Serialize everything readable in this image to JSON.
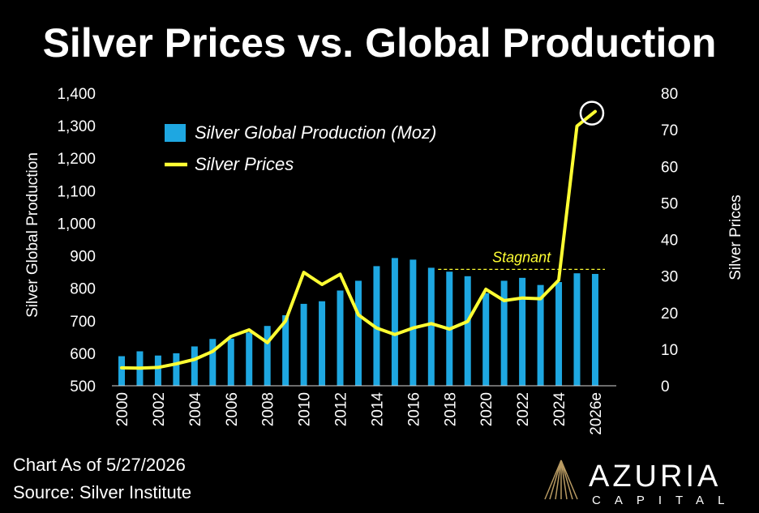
{
  "chart_data": {
    "type": "bar",
    "title": "Silver Prices vs. Global Production",
    "categories": [
      "2000",
      "2001",
      "2002",
      "2003",
      "2004",
      "2005",
      "2006",
      "2007",
      "2008",
      "2009",
      "2010",
      "2011",
      "2012",
      "2013",
      "2014",
      "2015",
      "2016",
      "2017",
      "2018",
      "2019",
      "2020",
      "2021",
      "2022",
      "2023",
      "2024",
      "2025",
      "2026e"
    ],
    "x_tick_labels": [
      "2000",
      "2002",
      "2004",
      "2006",
      "2008",
      "2010",
      "2012",
      "2014",
      "2016",
      "2018",
      "2020",
      "2022",
      "2024",
      "2026e"
    ],
    "series": [
      {
        "name": "Silver Global Production (Moz)",
        "type": "bar",
        "axis": "left",
        "color": "#1ea7e1",
        "values": [
          591,
          606,
          593,
          600,
          621,
          644,
          645,
          664,
          684,
          717,
          752,
          760,
          793,
          823,
          868,
          893,
          888,
          863,
          851,
          837,
          785,
          823,
          832,
          810,
          819,
          846,
          844
        ]
      },
      {
        "name": "Silver Prices",
        "type": "line",
        "axis": "right",
        "color": "#ffff33",
        "values": [
          4.9,
          4.8,
          5.0,
          6.0,
          7.2,
          9.4,
          13.5,
          15.3,
          11.8,
          17.7,
          31.0,
          27.7,
          30.5,
          19.4,
          15.8,
          14.0,
          15.8,
          17.0,
          15.5,
          17.6,
          26.4,
          23.3,
          24.0,
          23.8,
          28.9,
          71.0,
          75.0
        ]
      }
    ],
    "ylabel": "Silver Global Production",
    "y2label": "Silver Prices",
    "ylim": [
      500,
      1400
    ],
    "y2lim": [
      0,
      80
    ],
    "yticks": [
      "500",
      "600",
      "700",
      "800",
      "900",
      "1,000",
      "1,100",
      "1,200",
      "1,300",
      "1,400"
    ],
    "y2ticks": [
      "0",
      "10",
      "20",
      "30",
      "40",
      "50",
      "60",
      "70",
      "80"
    ],
    "grid": false,
    "legend_position": "top-left",
    "annotation": {
      "text": "Stagnant",
      "line_from": "2018",
      "line_to": "2026e",
      "level": 858,
      "color": "#ffff33"
    },
    "highlight": {
      "category": "2026e",
      "series": "Silver Prices"
    }
  },
  "footer": {
    "as_of": "Chart As of 5/27/2026",
    "source": "Source: Silver Institute"
  },
  "logo": {
    "name": "AZURIA",
    "subtitle": "CAPITAL"
  },
  "colors": {
    "background": "#000000",
    "text": "#ffffff",
    "bar": "#1ea7e1",
    "line": "#ffff33",
    "logo_gold": "#b89a62"
  }
}
